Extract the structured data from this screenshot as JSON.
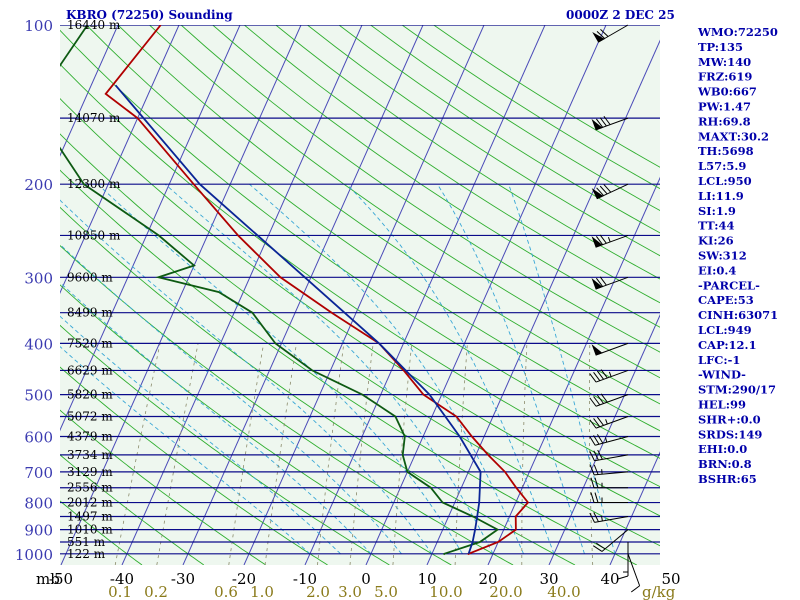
{
  "title_left": "KBRO (72250) Sounding",
  "title_right": "0000Z  2 DEC 25",
  "p_axis_unit": "mb",
  "mixr_unit": "g/kg",
  "chart_data": {
    "type": "skew-t",
    "pressure_ticks": [
      100,
      200,
      300,
      400,
      500,
      600,
      700,
      800,
      900,
      1000
    ],
    "temperature_ticks": [
      -50,
      -40,
      -30,
      -20,
      -10,
      0,
      10,
      20,
      30,
      40,
      50
    ],
    "mixing_ratio_ticks": [
      "0.1",
      "0.2",
      "0.6",
      "1.0",
      "2.0",
      "3.0",
      "5.0",
      "10.0",
      "20.0",
      "40.0"
    ],
    "height_labels": [
      {
        "p": 100,
        "label": "16440 m"
      },
      {
        "p": 150,
        "label": "14070 m"
      },
      {
        "p": 200,
        "label": "12300 m"
      },
      {
        "p": 250,
        "label": "10850 m"
      },
      {
        "p": 300,
        "label": "9600 m"
      },
      {
        "p": 350,
        "label": "8499 m"
      },
      {
        "p": 400,
        "label": "7520 m"
      },
      {
        "p": 450,
        "label": "6629 m"
      },
      {
        "p": 500,
        "label": "5820 m"
      },
      {
        "p": 550,
        "label": "5072 m"
      },
      {
        "p": 600,
        "label": "4379 m"
      },
      {
        "p": 650,
        "label": "3734 m"
      },
      {
        "p": 700,
        "label": "3129 m"
      },
      {
        "p": 750,
        "label": "2556 m"
      },
      {
        "p": 800,
        "label": "2012 m"
      },
      {
        "p": 850,
        "label": "1497 m"
      },
      {
        "p": 900,
        "label": "1010 m"
      },
      {
        "p": 950,
        "label": "551 m"
      },
      {
        "p": 1000,
        "label": "122 m"
      }
    ],
    "series": [
      {
        "role": "temperature",
        "color": "#b00000",
        "points": [
          [
            100,
            -73
          ],
          [
            135,
            -77
          ],
          [
            150,
            -70
          ],
          [
            200,
            -56
          ],
          [
            250,
            -45
          ],
          [
            300,
            -35
          ],
          [
            350,
            -24
          ],
          [
            400,
            -14
          ],
          [
            450,
            -8
          ],
          [
            500,
            -3
          ],
          [
            550,
            4
          ],
          [
            600,
            8
          ],
          [
            650,
            12
          ],
          [
            700,
            16
          ],
          [
            750,
            19
          ],
          [
            800,
            22
          ],
          [
            850,
            21
          ],
          [
            900,
            22
          ],
          [
            950,
            20
          ],
          [
            1000,
            16
          ],
          [
            1004,
            16
          ]
        ]
      },
      {
        "role": "dewpoint",
        "color": "#0d5a12",
        "points": [
          [
            100,
            -85
          ],
          [
            140,
            -88
          ],
          [
            150,
            -86
          ],
          [
            200,
            -74
          ],
          [
            250,
            -58
          ],
          [
            285,
            -50
          ],
          [
            300,
            -55
          ],
          [
            320,
            -44
          ],
          [
            350,
            -37
          ],
          [
            400,
            -31
          ],
          [
            450,
            -23
          ],
          [
            500,
            -13
          ],
          [
            550,
            -6
          ],
          [
            600,
            -3
          ],
          [
            650,
            -2
          ],
          [
            700,
            0
          ],
          [
            750,
            5
          ],
          [
            800,
            8
          ],
          [
            850,
            14
          ],
          [
            900,
            19
          ],
          [
            950,
            17
          ],
          [
            1000,
            12
          ],
          [
            1004,
            12
          ]
        ]
      },
      {
        "role": "parcel",
        "color": "#0a2596",
        "points": [
          [
            1000,
            16
          ],
          [
            950,
            15.8
          ],
          [
            900,
            15.3
          ],
          [
            850,
            14.7
          ],
          [
            800,
            14
          ],
          [
            700,
            12
          ],
          [
            600,
            6
          ],
          [
            500,
            -2
          ],
          [
            400,
            -14
          ],
          [
            300,
            -31
          ],
          [
            200,
            -55
          ],
          [
            130,
            -76
          ]
        ]
      }
    ],
    "wind_barbs": [
      {
        "p": 1000,
        "dir": 160,
        "kt": 10
      },
      {
        "p": 950,
        "dir": 180,
        "kt": 15
      },
      {
        "p": 900,
        "dir": 230,
        "kt": 20
      },
      {
        "p": 850,
        "dir": 260,
        "kt": 25
      },
      {
        "p": 800,
        "dir": 270,
        "kt": 25
      },
      {
        "p": 750,
        "dir": 270,
        "kt": 25
      },
      {
        "p": 700,
        "dir": 265,
        "kt": 25
      },
      {
        "p": 650,
        "dir": 260,
        "kt": 30
      },
      {
        "p": 600,
        "dir": 255,
        "kt": 35
      },
      {
        "p": 550,
        "dir": 250,
        "kt": 35
      },
      {
        "p": 500,
        "dir": 250,
        "kt": 40
      },
      {
        "p": 450,
        "dir": 250,
        "kt": 45
      },
      {
        "p": 400,
        "dir": 250,
        "kt": 50
      },
      {
        "p": 300,
        "dir": 250,
        "kt": 70
      },
      {
        "p": 250,
        "dir": 250,
        "kt": 75
      },
      {
        "p": 200,
        "dir": 245,
        "kt": 80
      },
      {
        "p": 150,
        "dir": 250,
        "kt": 80
      },
      {
        "p": 100,
        "dir": 240,
        "kt": 70
      }
    ]
  },
  "indices": [
    "WMO:72250",
    "TP:135",
    "MW:140",
    "FRZ:619",
    "WB0:667",
    "PW:1.47",
    "RH:69.8",
    "MAXT:30.2",
    "TH:5698",
    "L57:5.9",
    "LCL:950",
    "LI:11.9",
    "SI:1.9",
    "TT:44",
    "KI:26",
    "SW:312",
    "EI:0.4",
    "-PARCEL-",
    "CAPE:53",
    "CINH:63071",
    "LCL:949",
    "CAP:12.1",
    "LFC:-1",
    "-WIND-",
    "STM:290/17",
    "HEL:99",
    "SHR+:0.0",
    "SRDS:149",
    "EHI:0.0",
    "BRN:0.8",
    "BSHR:65"
  ]
}
